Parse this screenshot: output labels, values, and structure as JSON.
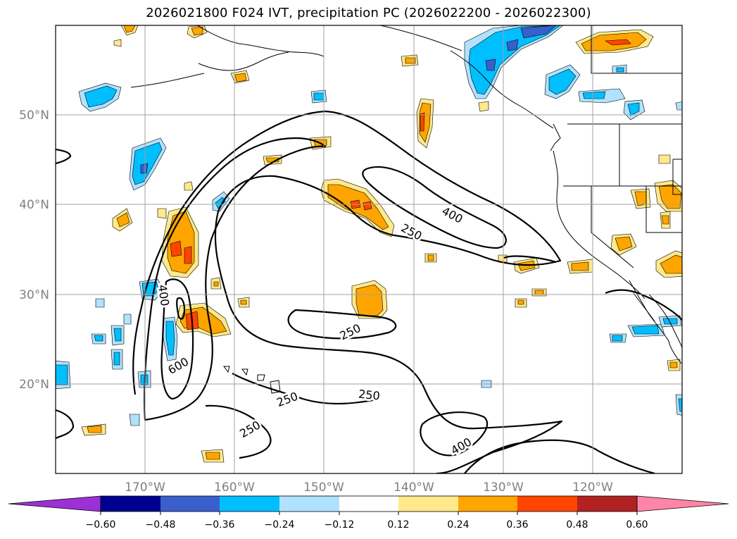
{
  "title": "2026021800 F024 IVT, precipitation PC (2026022200 - 2026022300)",
  "map": {
    "lat_labels": [
      "50°N",
      "40°N",
      "30°N",
      "20°N"
    ],
    "lon_labels": [
      "170°W",
      "160°W",
      "150°W",
      "140°W",
      "130°W",
      "120°W"
    ],
    "contour_labels": [
      "400",
      "250",
      "400",
      "600",
      "250",
      "250",
      "250",
      "250",
      "400"
    ]
  },
  "colorbar": {
    "ticks": [
      "−0.60",
      "−0.48",
      "−0.36",
      "−0.24",
      "−0.12",
      "0.12",
      "0.24",
      "0.36",
      "0.48",
      "0.60"
    ],
    "colors": [
      "#9b30d4",
      "#000090",
      "#3a5fcd",
      "#00bfff",
      "#b0e2ff",
      "#ffffff",
      "#ffe98a",
      "#ffa500",
      "#ff4500",
      "#b22222",
      "#ff85a8"
    ]
  },
  "colors": {
    "neg_light": "#b0e2ff",
    "neg_mid": "#00bfff",
    "neg_dark": "#3a5fcd",
    "pos_light": "#ffe98a",
    "pos_mid": "#ffa500",
    "pos_dark": "#ff4500"
  }
}
